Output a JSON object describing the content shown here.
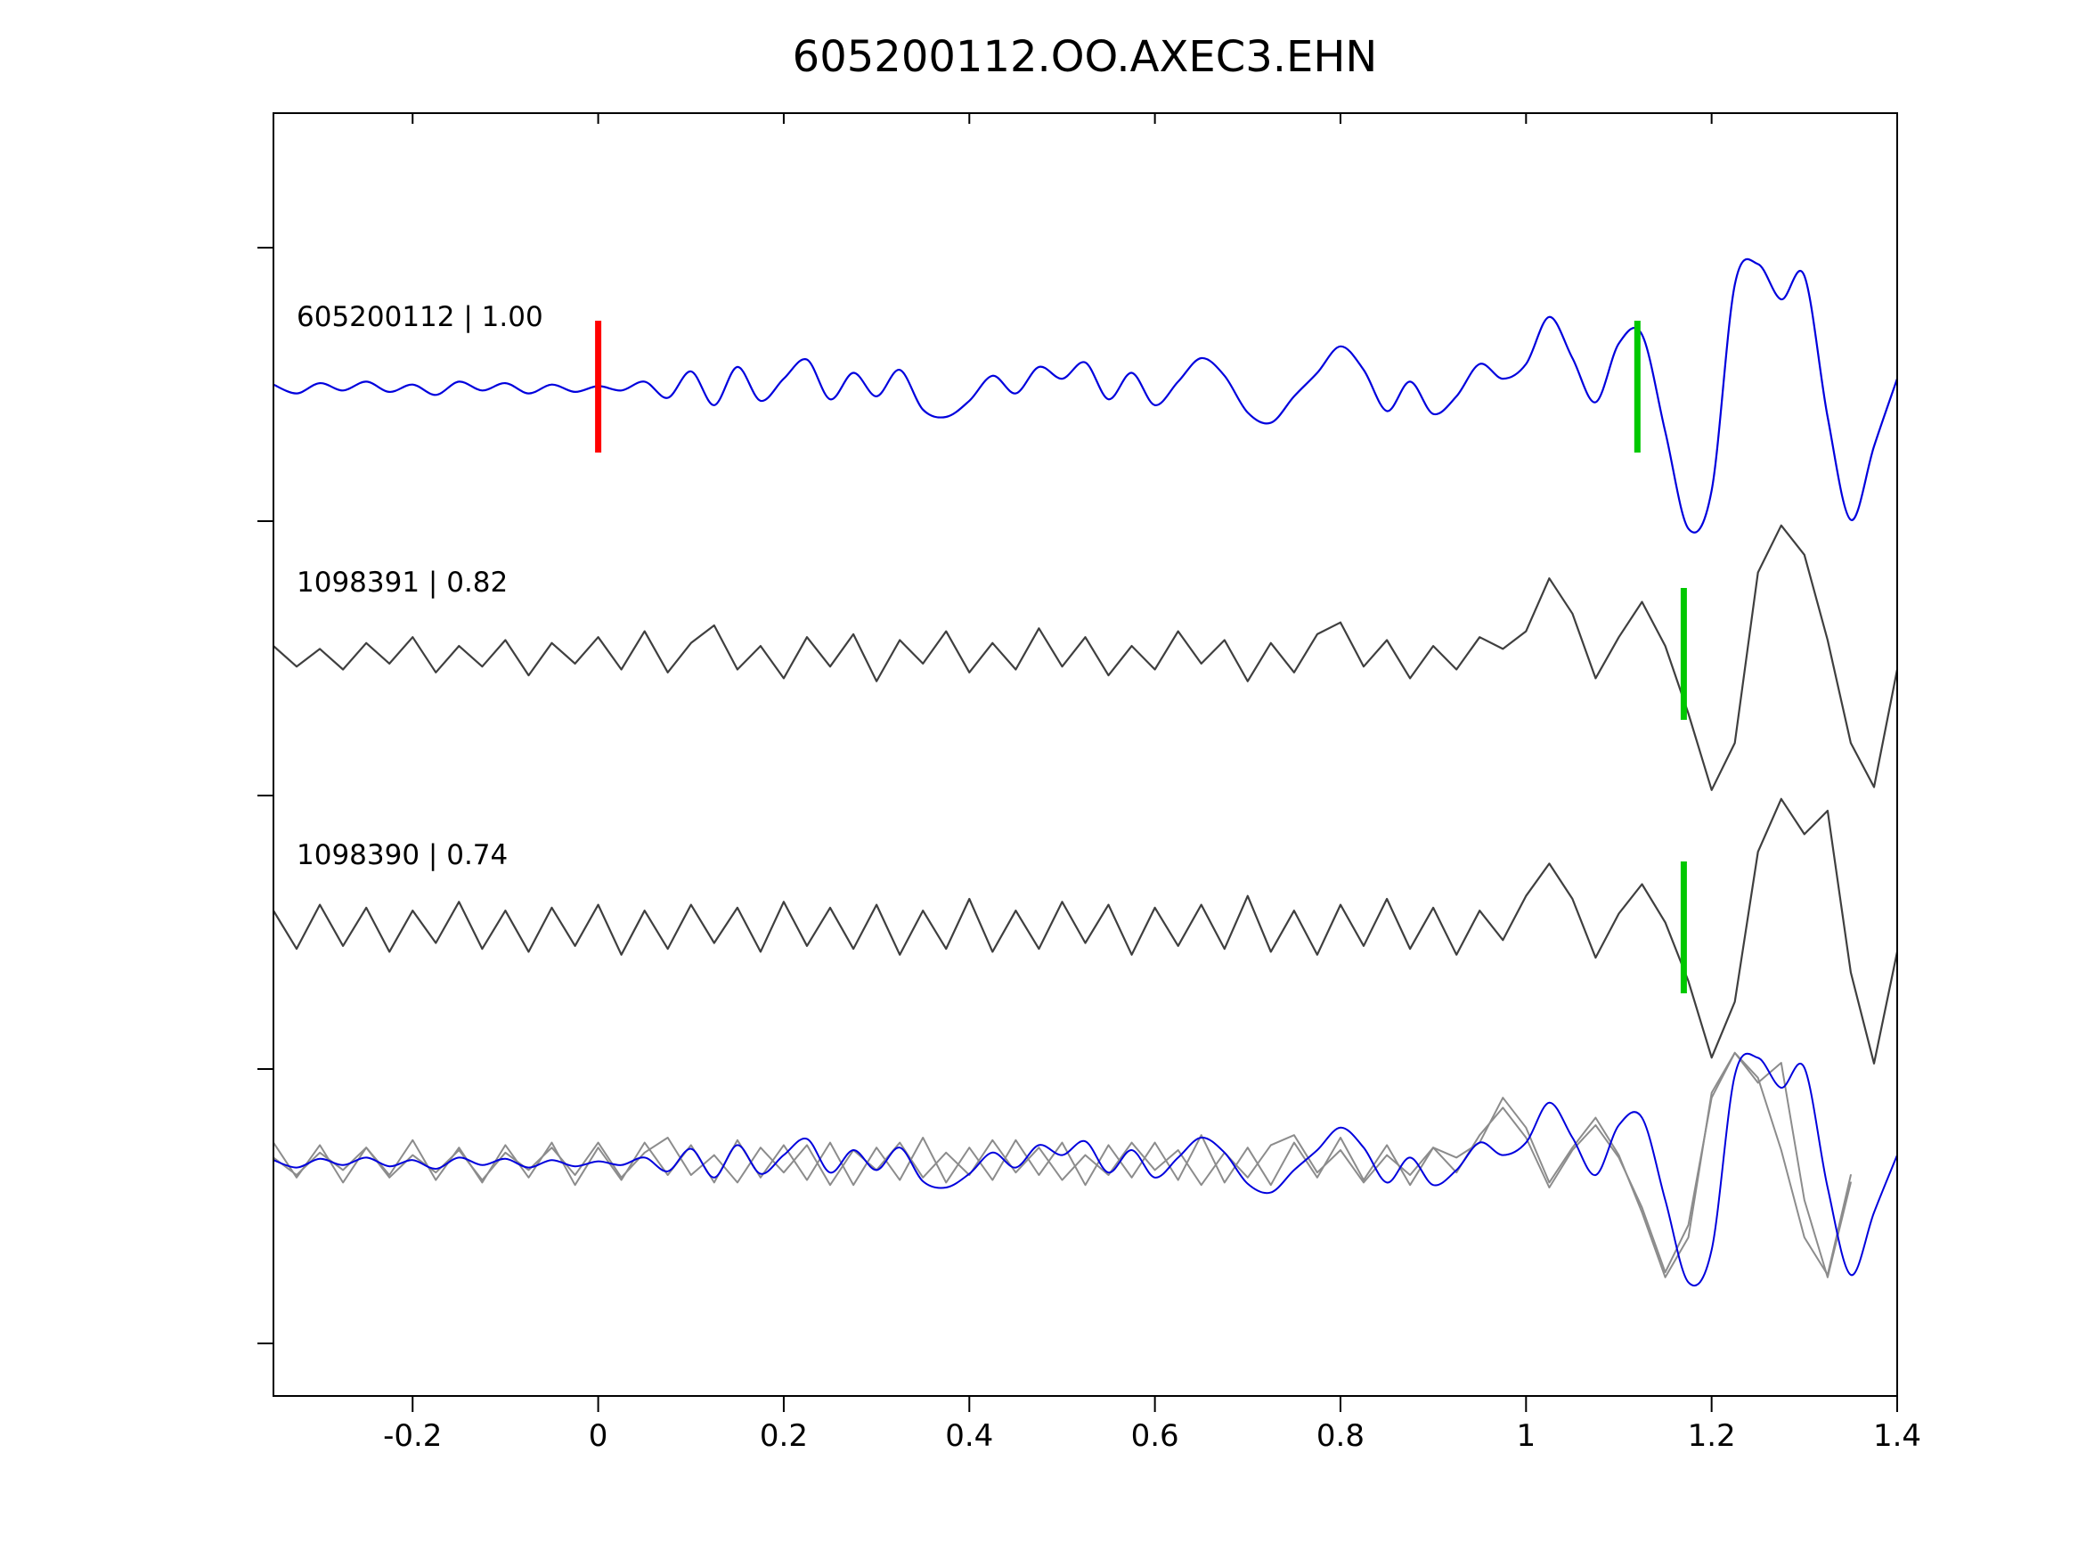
{
  "title": "605200112.OO.AXEC3.EHN",
  "colors": {
    "background": "#ffffff",
    "axes": "#000000",
    "template_trace": "#0000dd",
    "candidate_trace": "#3f3f3f",
    "overlay_gray": "#8c8c8c",
    "reference_marker": "#ff0000",
    "pick_marker": "#00c800"
  },
  "chart_data": {
    "type": "line",
    "title": "605200112.OO.AXEC3.EHN",
    "xlabel": "",
    "ylabel": "",
    "grid": false,
    "legend": "inline trace labels, upper-left of each trace",
    "xlim": [
      -0.35,
      1.4
    ],
    "x_start": -0.35,
    "dx": 0.025,
    "xtick_values": [
      -0.2,
      0,
      0.2,
      0.4,
      0.6,
      0.8,
      1,
      1.2,
      1.4
    ],
    "xtick_labels": [
      "-0.2",
      "0",
      "0.2",
      "0.4",
      "0.6",
      "0.8",
      "1",
      "1.2",
      "1.4"
    ],
    "traces": [
      {
        "name": "605200112",
        "label": "605200112 | 1.00",
        "correlation": 1.0,
        "color": "#0000dd",
        "smooth": true,
        "samples": [
          0.1,
          -0.2,
          0.15,
          -0.1,
          0.2,
          -0.15,
          0.1,
          -0.25,
          0.2,
          -0.1,
          0.15,
          -0.2,
          0.1,
          -0.15,
          0.05,
          -0.1,
          0.2,
          -0.35,
          0.55,
          -0.6,
          0.7,
          -0.45,
          0.3,
          0.95,
          -0.4,
          0.5,
          -0.3,
          0.6,
          -0.75,
          -1.0,
          -0.45,
          0.4,
          -0.2,
          0.7,
          0.3,
          0.85,
          -0.4,
          0.5,
          -0.6,
          0.2,
          1.0,
          0.4,
          -0.85,
          -1.2,
          -0.3,
          0.5,
          1.4,
          0.6,
          -0.8,
          0.2,
          -0.9,
          -0.3,
          0.8,
          0.3,
          0.8,
          2.4,
          1.0,
          -0.5,
          1.5,
          1.8,
          -1.5,
          -4.8,
          -3.5,
          3.5,
          4.2,
          3.0,
          3.8,
          -1.0,
          -4.5,
          -2.0,
          0.3
        ],
        "markers": [
          {
            "kind": "reference",
            "color": "#ff0000",
            "x": 0.0
          },
          {
            "kind": "pick",
            "color": "#00c800",
            "x": 1.12
          }
        ]
      },
      {
        "name": "1098391",
        "label": "1098391 | 0.82",
        "correlation": 0.82,
        "color": "#3f3f3f",
        "smooth": false,
        "samples": [
          0.3,
          -0.4,
          0.2,
          -0.5,
          0.4,
          -0.3,
          0.6,
          -0.6,
          0.3,
          -0.4,
          0.5,
          -0.7,
          0.4,
          -0.3,
          0.6,
          -0.5,
          0.8,
          -0.6,
          0.4,
          1.0,
          -0.5,
          0.3,
          -0.8,
          0.6,
          -0.4,
          0.7,
          -0.9,
          0.5,
          -0.3,
          0.8,
          -0.6,
          0.4,
          -0.5,
          0.9,
          -0.4,
          0.6,
          -0.7,
          0.3,
          -0.5,
          0.8,
          -0.3,
          0.5,
          -0.9,
          0.4,
          -0.6,
          0.7,
          1.1,
          -0.4,
          0.5,
          -0.8,
          0.3,
          -0.5,
          0.6,
          0.2,
          0.8,
          2.6,
          1.4,
          -0.8,
          0.6,
          1.8,
          0.3,
          -2.0,
          -4.6,
          -3.0,
          2.8,
          4.4,
          3.4,
          0.5,
          -3.0,
          -4.5,
          -0.5
        ],
        "markers": [
          {
            "kind": "pick",
            "color": "#00c800",
            "x": 1.17
          }
        ]
      },
      {
        "name": "1098390",
        "label": "1098390 | 0.74",
        "correlation": 0.74,
        "color": "#3f3f3f",
        "smooth": false,
        "samples": [
          0.6,
          -0.7,
          0.8,
          -0.6,
          0.7,
          -0.8,
          0.6,
          -0.5,
          0.9,
          -0.7,
          0.6,
          -0.8,
          0.7,
          -0.6,
          0.8,
          -0.9,
          0.6,
          -0.7,
          0.8,
          -0.5,
          0.7,
          -0.8,
          0.9,
          -0.6,
          0.7,
          -0.7,
          0.8,
          -0.9,
          0.6,
          -0.7,
          1.0,
          -0.8,
          0.6,
          -0.7,
          0.9,
          -0.5,
          0.8,
          -0.9,
          0.7,
          -0.6,
          0.8,
          -0.7,
          1.1,
          -0.8,
          0.6,
          -0.9,
          0.8,
          -0.6,
          1.0,
          -0.7,
          0.7,
          -0.9,
          0.6,
          -0.4,
          1.1,
          2.2,
          1.0,
          -1.0,
          0.5,
          1.5,
          0.2,
          -1.8,
          -4.4,
          -2.5,
          2.6,
          4.4,
          3.2,
          4.0,
          -1.5,
          -4.6,
          -0.8
        ],
        "markers": [
          {
            "kind": "pick",
            "color": "#00c800",
            "x": 1.17
          }
        ]
      }
    ],
    "overlay": {
      "description": "bottom panel: aligned overlay of candidate traces (gray) and template trace (blue)",
      "members": [
        {
          "trace": 1,
          "shift": -0.05,
          "color": "#8c8c8c"
        },
        {
          "trace": 2,
          "shift": -0.05,
          "color": "#8c8c8c"
        },
        {
          "trace": 0,
          "shift": 0.0,
          "color": "#0000dd"
        }
      ]
    }
  }
}
